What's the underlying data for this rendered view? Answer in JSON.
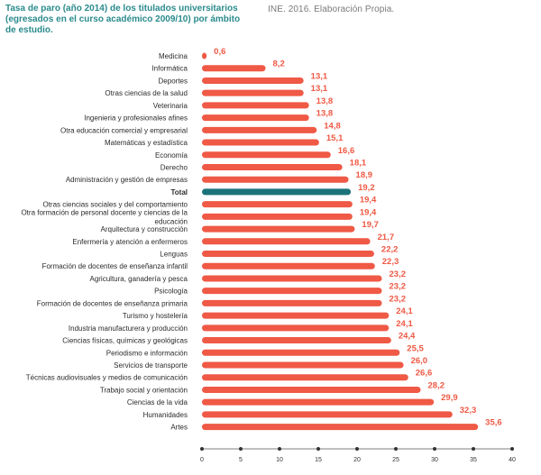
{
  "title": "Tasa de paro (año 2014) de los titulados universitarios (egresados en el curso académico 2009/10) por ámbito de estudio.",
  "source": "INE. 2016. Elaboración Propia.",
  "colors": {
    "bar": "#ef5945",
    "highlight": "#1b7379",
    "title": "#2a8a8c",
    "value": "#ef5945"
  },
  "chart_data": {
    "type": "bar",
    "orientation": "horizontal",
    "highlight_category": "Total",
    "categories": [
      "Medicina",
      "Informática",
      "Deportes",
      "Otras ciencias de la salud",
      "Veterinaria",
      "Ingenieria y profesionales afines",
      "Otra educación comercial y empresarial",
      "Matemáticas y estadística",
      "Economía",
      "Derecho",
      "Administración y gestión de empresas",
      "Total",
      "Otras ciencias sociales y del comportamiento",
      [
        "Otra formación de personal docente y ciencias de la",
        "educación"
      ],
      "Arquitectura y construcción",
      "Enfermería y atención a enfermeros",
      "Lenguas",
      "Formación de docentes de enseñanza infantil",
      "Agricultura, ganadería y pesca",
      "Psicología",
      "Formación de docentes de enseñanza primaria",
      "Turismo y hostelería",
      "Industria manufacturera y producción",
      "Ciencias físicas, químicas y geológicas",
      "Periodismo e información",
      "Servicios de transporte",
      "Técnicas audiovisuales y medios de comunicación",
      "Trabajo social y orientación",
      "Ciencias de la vida",
      "Humanidades",
      "Artes"
    ],
    "values": [
      0.6,
      8.2,
      13.1,
      13.1,
      13.8,
      13.8,
      14.8,
      15.1,
      16.6,
      18.1,
      18.9,
      19.2,
      19.4,
      19.4,
      19.7,
      21.7,
      22.2,
      22.3,
      23.2,
      23.2,
      23.2,
      24.1,
      24.1,
      24.4,
      25.5,
      26.0,
      26.6,
      28.2,
      29.9,
      32.3,
      35.6
    ],
    "value_labels": [
      "0,6",
      "8,2",
      "13,1",
      "13,1",
      "13,8",
      "13,8",
      "14,8",
      "15,1",
      "16,6",
      "18,1",
      "18,9",
      "19,2",
      "19,4",
      "19,4",
      "19,7",
      "21,7",
      "22,2",
      "22,3",
      "23,2",
      "23,2",
      "23,2",
      "24,1",
      "24,1",
      "24,4",
      "25,5",
      "26,0",
      "26,6",
      "28,2",
      "29,9",
      "32,3",
      "35,6"
    ],
    "xlim": [
      0,
      40
    ],
    "xticks": [
      0,
      5,
      10,
      15,
      20,
      25,
      30,
      35,
      40
    ],
    "xtick_labels": [
      "0",
      "5",
      "10",
      "15",
      "20",
      "25",
      "30",
      "35",
      "40"
    ],
    "xlabel": "",
    "ylabel": "",
    "grid": false,
    "legend": "none"
  }
}
